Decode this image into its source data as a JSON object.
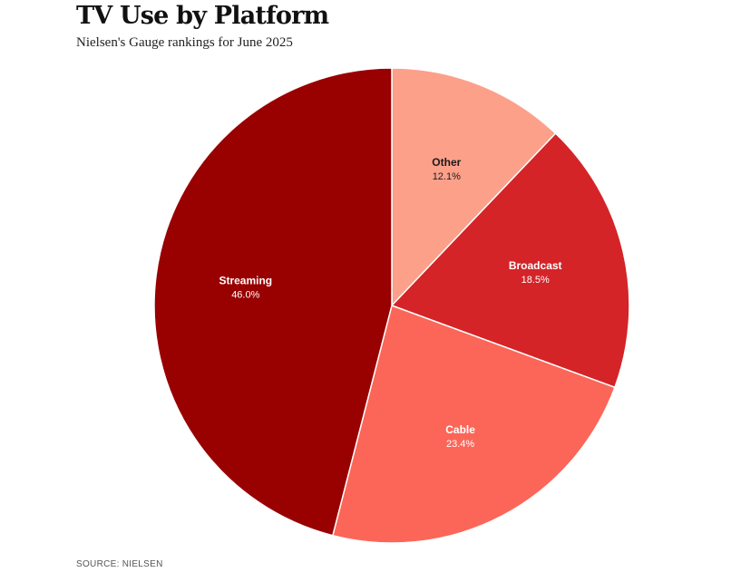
{
  "chart_data": {
    "type": "pie",
    "title": "TV Use by Platform",
    "subtitle": "Nielsen's Gauge rankings for June 2025",
    "source": "SOURCE: NIELSEN",
    "start": "top",
    "direction": "clockwise",
    "slices": [
      {
        "label": "Other",
        "value": 12.1,
        "value_label": "12.1%",
        "color": "#fca08a",
        "text_color": "#1a1a1a"
      },
      {
        "label": "Broadcast",
        "value": 18.5,
        "value_label": "18.5%",
        "color": "#d42428",
        "text_color": "#ffffff"
      },
      {
        "label": "Cable",
        "value": 23.4,
        "value_label": "23.4%",
        "color": "#fb6658",
        "text_color": "#ffffff"
      },
      {
        "label": "Streaming",
        "value": 46.0,
        "value_label": "46.0%",
        "color": "#990000",
        "text_color": "#ffffff"
      }
    ]
  }
}
